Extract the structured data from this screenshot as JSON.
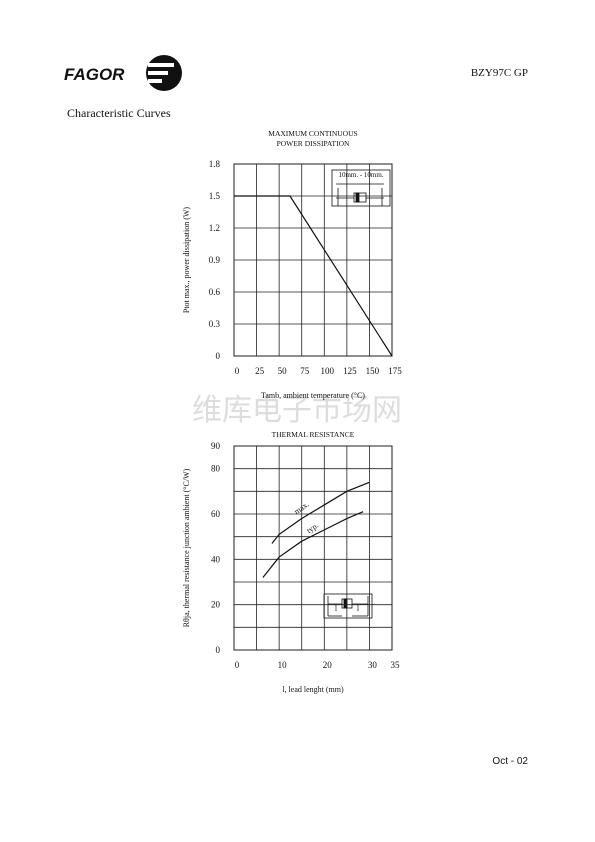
{
  "header": {
    "brand": "FAGOR",
    "part": "BZY97C GP"
  },
  "section_title": "Characteristic Curves",
  "watermark": "维库电子市场网",
  "footer": "Oct - 02",
  "chart_data": [
    {
      "type": "line",
      "title": [
        "MAXIMUM CONTINUOUS",
        "POWER DISSIPATION"
      ],
      "x_label": "Tamb, ambient temperature (°C)",
      "y_label": "Ptot max., power dissipation (W)",
      "xlim": [
        0,
        175
      ],
      "xticks": [
        0,
        25,
        50,
        75,
        100,
        125,
        150,
        175
      ],
      "ylim": [
        0,
        1.8
      ],
      "yticks": [
        0,
        0.3,
        0.6,
        0.9,
        1.2,
        1.5,
        1.8
      ],
      "grid": true,
      "color": "#111111",
      "series": [
        {
          "x": [
            0,
            62,
            175
          ],
          "values": [
            1.5,
            1.5,
            0
          ]
        }
      ],
      "annotations": [
        "10mm. - 10mm."
      ]
    },
    {
      "type": "line",
      "title": [
        "THERMAL RESISTANCE"
      ],
      "x_label": "l, lead lenght (mm)",
      "y_label": "Rθja, thermal resistance junction ambient (°C/W)",
      "xlim": [
        0,
        35
      ],
      "xticks": [
        0,
        10,
        20,
        30,
        35
      ],
      "x_minor_ticks": [
        5,
        15,
        25
      ],
      "ylim": [
        0,
        90
      ],
      "yticks": [
        0,
        20,
        40,
        60,
        80,
        90
      ],
      "y_minor_ticks": [
        10,
        30,
        50,
        70
      ],
      "grid": true,
      "color": "#111111",
      "series": [
        {
          "x": [
            8.4,
            10,
            15,
            20,
            25,
            30
          ],
          "values": [
            47,
            51,
            58,
            64,
            70,
            74
          ]
        },
        {
          "x": [
            6.4,
            10,
            15,
            20,
            25,
            28.6
          ],
          "values": [
            32,
            41,
            48,
            53,
            58,
            61
          ]
        }
      ],
      "annotations": [
        "max.",
        "typ.",
        "l",
        "l"
      ]
    }
  ]
}
